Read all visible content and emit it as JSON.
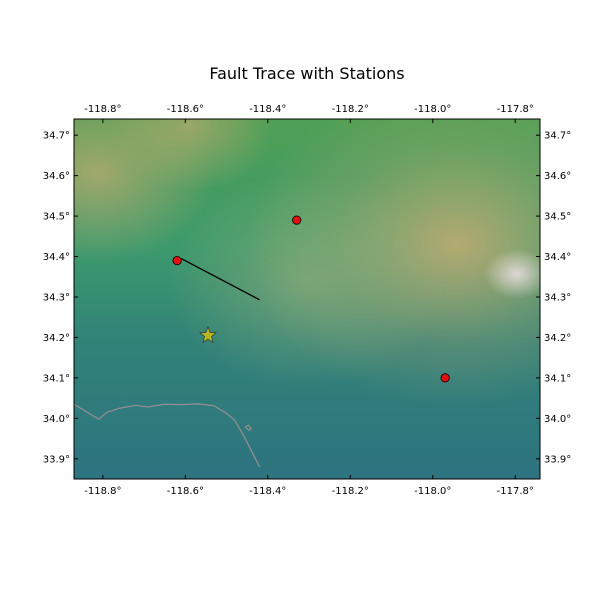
{
  "title": "Fault Trace with Stations",
  "map": {
    "lon_range": [
      -118.87,
      -117.74
    ],
    "lat_range": [
      33.85,
      34.74
    ],
    "terrain_colors": {
      "low": "#2e7380",
      "mid": "#3a9a7d",
      "green": "#4f9f55",
      "tan": "#c9ad72",
      "peak": "#e8dede"
    },
    "coastline_color": "#8f8f8f",
    "lon_ticks": [
      {
        "value": -118.8,
        "label": "-118.8°"
      },
      {
        "value": -118.6,
        "label": "-118.6°"
      },
      {
        "value": -118.4,
        "label": "-118.4°"
      },
      {
        "value": -118.2,
        "label": "-118.2°"
      },
      {
        "value": -118.0,
        "label": "-118.0°"
      },
      {
        "value": -117.8,
        "label": "-117.8°"
      }
    ],
    "lat_ticks": [
      {
        "value": 34.7,
        "label": "34.7°"
      },
      {
        "value": 34.6,
        "label": "34.6°"
      },
      {
        "value": 34.5,
        "label": "34.5°"
      },
      {
        "value": 34.4,
        "label": "34.4°"
      },
      {
        "value": 34.3,
        "label": "34.3°"
      },
      {
        "value": 34.2,
        "label": "34.2°"
      },
      {
        "value": 34.1,
        "label": "34.1°"
      },
      {
        "value": 34.0,
        "label": "34.0°"
      },
      {
        "value": 33.9,
        "label": "33.9°"
      }
    ],
    "fault_trace": {
      "color": "#000000",
      "points": [
        [
          -118.61,
          34.395
        ],
        [
          -118.42,
          34.293
        ]
      ]
    },
    "stations": {
      "color": "#e01010",
      "points": [
        [
          -118.62,
          34.39
        ],
        [
          -118.33,
          34.49
        ],
        [
          -117.97,
          34.1
        ]
      ]
    },
    "epicenter": {
      "icon": "star-icon",
      "color": "#b5b81e",
      "point": [
        -118.545,
        34.205
      ]
    },
    "coastline": [
      [
        -118.87,
        34.035
      ],
      [
        -118.83,
        34.01
      ],
      [
        -118.81,
        33.998
      ],
      [
        -118.79,
        34.015
      ],
      [
        -118.76,
        34.025
      ],
      [
        -118.72,
        34.032
      ],
      [
        -118.69,
        34.028
      ],
      [
        -118.65,
        34.035
      ],
      [
        -118.61,
        34.034
      ],
      [
        -118.57,
        34.036
      ],
      [
        -118.53,
        34.031
      ],
      [
        -118.5,
        34.012
      ],
      [
        -118.48,
        33.995
      ],
      [
        -118.46,
        33.96
      ],
      [
        -118.44,
        33.92
      ],
      [
        -118.42,
        33.88
      ]
    ],
    "marina": [
      [
        -118.455,
        33.978
      ],
      [
        -118.445,
        33.97
      ],
      [
        -118.44,
        33.975
      ],
      [
        -118.447,
        33.983
      ],
      [
        -118.455,
        33.978
      ]
    ]
  }
}
